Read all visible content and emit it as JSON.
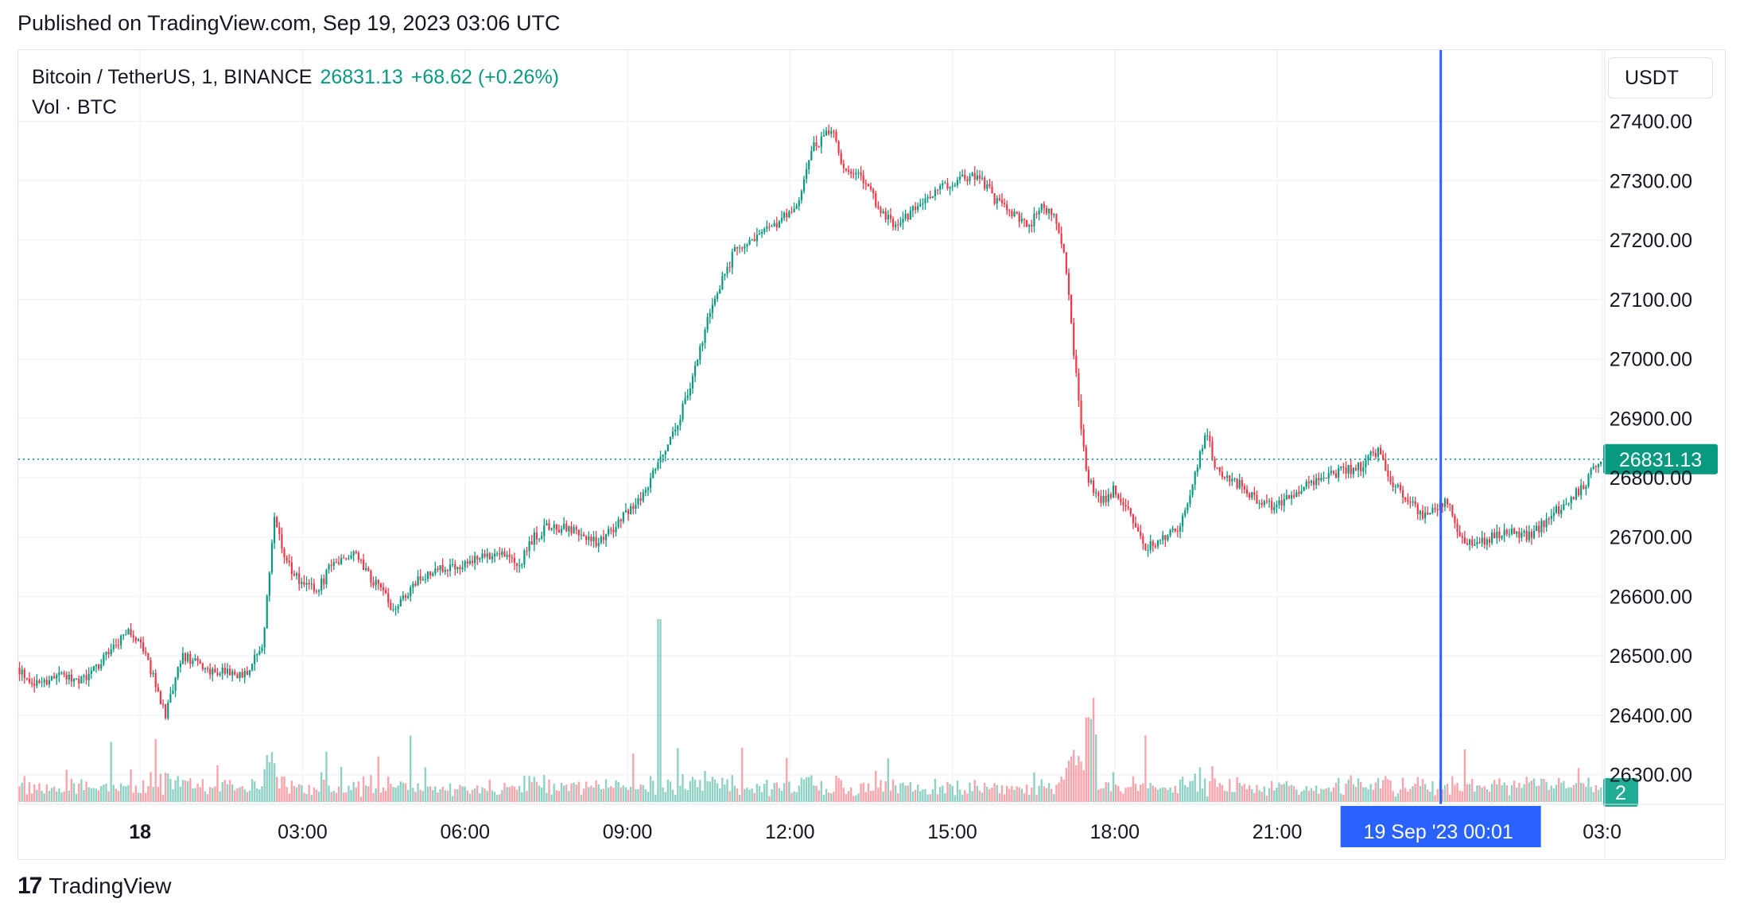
{
  "header": {
    "published": "Published on TradingView.com, Sep 19, 2023 03:06 UTC"
  },
  "legend": {
    "symbol": "Bitcoin / TetherUS, 1, BINANCE",
    "last": "26831.13",
    "change": "+68.62 (+0.26%)",
    "volume_label": "Vol · BTC"
  },
  "currency": "USDT",
  "footer": {
    "brand": "TradingView",
    "logo_mark": "17"
  },
  "colors": {
    "up": "#089981",
    "down": "#f23645",
    "crosshair": "#2962ff",
    "grid": "#f0f3fa"
  },
  "chart_data": {
    "type": "candlestick",
    "timeframe": "1m",
    "y_axis": {
      "ticks": [
        26300,
        26400,
        26500,
        26600,
        26700,
        26800,
        26900,
        27000,
        27100,
        27200,
        27300,
        27400
      ],
      "tick_labels": [
        "26300.00",
        "26400.00",
        "26500.00",
        "26600.00",
        "26700.00",
        "26800.00",
        "26900.00",
        "27000.00",
        "27100.00",
        "27200.00",
        "27300.00",
        "27400.00"
      ],
      "range": [
        26250,
        27520
      ]
    },
    "x_axis": {
      "hours_range": [
        -2.25,
        27.05
      ],
      "ticks": [
        {
          "label": "18",
          "h": 0,
          "bold": true
        },
        {
          "label": "03:00",
          "h": 3
        },
        {
          "label": "06:00",
          "h": 6
        },
        {
          "label": "09:00",
          "h": 9
        },
        {
          "label": "12:00",
          "h": 12
        },
        {
          "label": "15:00",
          "h": 15
        },
        {
          "label": "18:00",
          "h": 18
        },
        {
          "label": "21:00",
          "h": 21
        },
        {
          "label": "03:0",
          "h": 27
        }
      ]
    },
    "price_path": [
      [
        -2.25,
        26480
      ],
      [
        -1.9,
        26450
      ],
      [
        -1.5,
        26470
      ],
      [
        -1.0,
        26460
      ],
      [
        -0.6,
        26500
      ],
      [
        -0.2,
        26540
      ],
      [
        0.1,
        26510
      ],
      [
        0.5,
        26400
      ],
      [
        0.8,
        26500
      ],
      [
        1.2,
        26480
      ],
      [
        1.6,
        26470
      ],
      [
        2.0,
        26470
      ],
      [
        2.3,
        26520
      ],
      [
        2.5,
        26740
      ],
      [
        2.7,
        26660
      ],
      [
        3.0,
        26620
      ],
      [
        3.3,
        26610
      ],
      [
        3.6,
        26660
      ],
      [
        4.0,
        26670
      ],
      [
        4.3,
        26630
      ],
      [
        4.7,
        26580
      ],
      [
        5.2,
        26630
      ],
      [
        5.7,
        26650
      ],
      [
        6.2,
        26660
      ],
      [
        6.7,
        26680
      ],
      [
        7.0,
        26650
      ],
      [
        7.3,
        26700
      ],
      [
        7.6,
        26720
      ],
      [
        8.0,
        26710
      ],
      [
        8.5,
        26690
      ],
      [
        9.0,
        26740
      ],
      [
        9.3,
        26770
      ],
      [
        9.6,
        26830
      ],
      [
        9.9,
        26880
      ],
      [
        10.2,
        26960
      ],
      [
        10.6,
        27100
      ],
      [
        11.0,
        27180
      ],
      [
        11.4,
        27200
      ],
      [
        11.8,
        27230
      ],
      [
        12.2,
        27260
      ],
      [
        12.4,
        27350
      ],
      [
        12.8,
        27390
      ],
      [
        13.0,
        27320
      ],
      [
        13.4,
        27300
      ],
      [
        13.7,
        27250
      ],
      [
        14.0,
        27220
      ],
      [
        14.3,
        27250
      ],
      [
        14.7,
        27280
      ],
      [
        15.1,
        27300
      ],
      [
        15.5,
        27310
      ],
      [
        15.8,
        27270
      ],
      [
        16.1,
        27250
      ],
      [
        16.4,
        27220
      ],
      [
        16.7,
        27260
      ],
      [
        16.9,
        27240
      ],
      [
        17.1,
        27170
      ],
      [
        17.3,
        26980
      ],
      [
        17.5,
        26800
      ],
      [
        17.8,
        26760
      ],
      [
        18.0,
        26780
      ],
      [
        18.3,
        26740
      ],
      [
        18.6,
        26680
      ],
      [
        18.9,
        26700
      ],
      [
        19.2,
        26710
      ],
      [
        19.5,
        26800
      ],
      [
        19.7,
        26880
      ],
      [
        19.9,
        26810
      ],
      [
        20.3,
        26790
      ],
      [
        20.7,
        26760
      ],
      [
        21.0,
        26750
      ],
      [
        21.4,
        26780
      ],
      [
        21.8,
        26800
      ],
      [
        22.2,
        26810
      ],
      [
        22.6,
        26820
      ],
      [
        22.9,
        26850
      ],
      [
        23.1,
        26800
      ],
      [
        23.4,
        26760
      ],
      [
        23.7,
        26740
      ],
      [
        24.0,
        26750
      ],
      [
        24.2,
        26760
      ],
      [
        24.4,
        26700
      ],
      [
        24.7,
        26690
      ],
      [
        25.0,
        26700
      ],
      [
        25.3,
        26710
      ],
      [
        25.7,
        26700
      ],
      [
        26.0,
        26730
      ],
      [
        26.4,
        26760
      ],
      [
        26.7,
        26790
      ],
      [
        27.0,
        26831
      ]
    ],
    "series": [
      {
        "name": "Vol · BTC",
        "type": "volume"
      }
    ],
    "last_price_label": "26831.13",
    "last_volume_label": "2",
    "crosshair_label": "19 Sep '23   00:01",
    "crosshair_h": 24.02
  }
}
